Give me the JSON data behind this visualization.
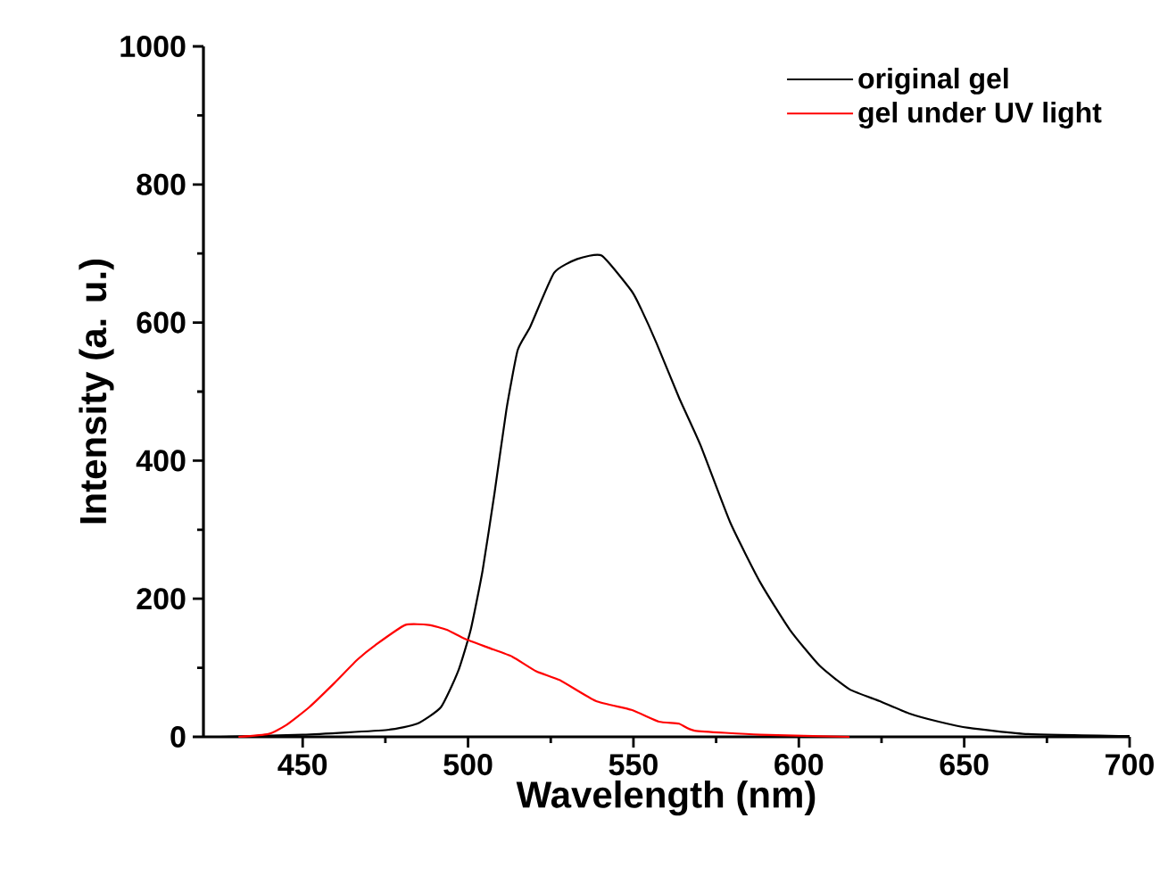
{
  "chart_data": {
    "type": "line",
    "xlabel": "Wavelength (nm)",
    "ylabel": "Intensity (a. u.)",
    "xlim": [
      420,
      700
    ],
    "ylim": [
      0,
      1000
    ],
    "xticks": [
      450,
      500,
      550,
      600,
      650,
      700
    ],
    "yticks": [
      0,
      200,
      400,
      600,
      800,
      1000
    ],
    "legend": "top right",
    "series": [
      {
        "name": "original gel",
        "color": "#000000",
        "x": [
          425,
          450,
          475.6,
          484.6,
          491.8,
          497,
          500.8,
          504.4,
          508,
          511.6,
          515,
          518.8,
          526,
          533,
          540.4,
          549.4,
          552.3,
          557,
          563.8,
          570.3,
          579.3,
          588.3,
          597.3,
          606.3,
          615.3,
          624.3,
          633.3,
          642.3,
          651.3,
          669.3,
          700
        ],
        "values": [
          0,
          3,
          10,
          19,
          43,
          95,
          155,
          241,
          353,
          474,
          560,
          594,
          672,
          692,
          697,
          646,
          620,
          570,
          491,
          422,
          310,
          224,
          155,
          103,
          69,
          52,
          34,
          22,
          13,
          4,
          1
        ]
      },
      {
        "name": "gel under UV light",
        "color": "#ff0000",
        "x": [
          430.6,
          439.6,
          445,
          452,
          459.4,
          466.6,
          472,
          481,
          488.2,
          493.6,
          499,
          506.2,
          513.4,
          520.6,
          527.8,
          538.6,
          549.4,
          557.7,
          563.8,
          568.5,
          588.3,
          615.3
        ],
        "values": [
          0,
          4,
          17,
          43,
          77,
          112,
          133,
          162,
          162,
          155,
          142,
          129,
          116,
          95,
          82,
          52,
          39,
          22,
          19,
          9,
          3,
          0
        ]
      }
    ]
  }
}
